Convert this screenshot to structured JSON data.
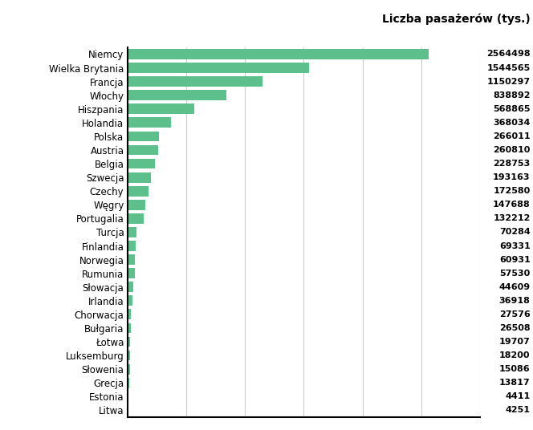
{
  "chart_data": {
    "type": "bar",
    "orientation": "horizontal",
    "title": "Liczba pasażerów (tys.)",
    "categories": [
      "Niemcy",
      "Wielka Brytania",
      "Francja",
      "Włochy",
      "Hiszpania",
      "Holandia",
      "Polska",
      "Austria",
      "Belgia",
      "Szwecja",
      "Czechy",
      "Węgry",
      "Portugalia",
      "Turcja",
      "Finlandia",
      "Norwegia",
      "Rumunia",
      "Słowacja",
      "Irlandia",
      "Chorwacja",
      "Bułgaria",
      "Łotwa",
      "Luksemburg",
      "Słowenia",
      "Grecja",
      "Estonia",
      "Litwa"
    ],
    "values": [
      2564498,
      1544565,
      1150297,
      838892,
      568865,
      368034,
      266011,
      260810,
      228753,
      193163,
      172580,
      147688,
      132212,
      70284,
      69331,
      60931,
      57530,
      44609,
      36918,
      27576,
      26508,
      19707,
      18200,
      15086,
      13817,
      4411,
      4251
    ],
    "color": "#5cbf8c",
    "xlim": [
      0,
      3000000
    ],
    "xticks": [
      0,
      500000,
      1000000,
      1500000,
      2000000,
      2500000,
      3000000
    ],
    "grid": true,
    "data_labels": true,
    "tick_labels": "y"
  }
}
